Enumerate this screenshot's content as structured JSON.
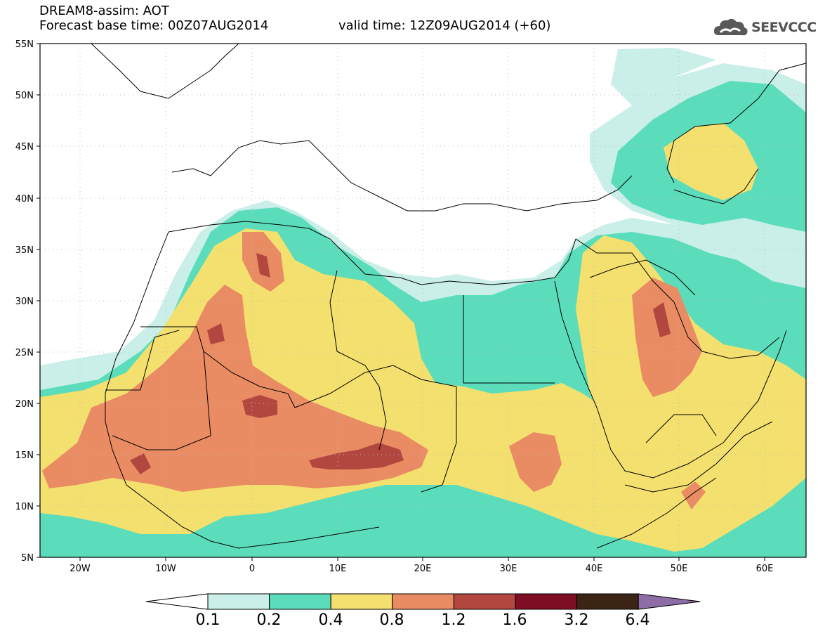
{
  "header": {
    "title": "DREAM8-assim: AOT",
    "base_time": "Forecast base time: 00Z07AUG2014",
    "valid_time": "valid time: 12Z09AUG2014 (+60)"
  },
  "logo": {
    "text": "SEEVCCC",
    "icon": "cloud-icon"
  },
  "map": {
    "projection": "lat-lon",
    "lon_range": [
      -25,
      65
    ],
    "lat_range": [
      5,
      55
    ],
    "y_ticks": [
      "55N",
      "50N",
      "45N",
      "40N",
      "35N",
      "30N",
      "25N",
      "20N",
      "15N",
      "10N",
      "5N"
    ],
    "x_ticks": [
      "20W",
      "10W",
      "0",
      "10E",
      "20E",
      "30E",
      "40E",
      "50E",
      "60E"
    ]
  },
  "colorbar": {
    "labels": [
      "0.1",
      "0.2",
      "0.4",
      "0.8",
      "1.2",
      "1.6",
      "3.2",
      "6.4"
    ],
    "colors": [
      "#ffffff",
      "#c9efe8",
      "#5bddbb",
      "#f4e06e",
      "#e98b63",
      "#b1473f",
      "#7e0e24",
      "#3c2415",
      "#8e6da6"
    ]
  },
  "chart_data": {
    "type": "heatmap",
    "variable": "AOT",
    "levels": [
      0.1,
      0.2,
      0.4,
      0.8,
      1.2,
      1.6,
      3.2,
      6.4
    ],
    "xlim": [
      -25,
      65
    ],
    "ylim": [
      5,
      55
    ],
    "regions": [
      {
        "level_min": 0.1,
        "area": "band across Africa, Arabia and Central Asia (lat 5-52)"
      },
      {
        "level_min": 0.2,
        "area": "Sahara, Sahel, Arabia, Caspian region"
      },
      {
        "level_min": 0.4,
        "area": "West/central Sahara, Sahel to 25E, Arabian Peninsula, Kazakhstan"
      },
      {
        "level_min": 0.8,
        "area": "Mauritania/Mali/Niger/Chad, Algeria, eastern Arabia"
      },
      {
        "level_min": 1.2,
        "area": "Mali (20N,2E), Niger/Chad (14N,12E), SW Algeria, Kuwait/Iraq"
      }
    ]
  }
}
